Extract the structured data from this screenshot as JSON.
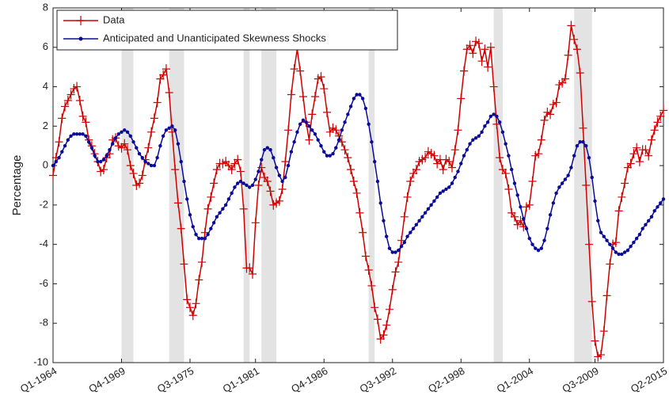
{
  "chart_data": {
    "type": "line",
    "ylabel": "Percentage",
    "ylim": [
      -10,
      8
    ],
    "yticks": [
      -10,
      -8,
      -6,
      -4,
      -2,
      0,
      2,
      4,
      6,
      8
    ],
    "grid": false,
    "legend": "upper-left",
    "shade_color": "#e3e3e3",
    "shaded_periods": [
      [
        23,
        27
      ],
      [
        39,
        44
      ],
      [
        64,
        66
      ],
      [
        70,
        75
      ],
      [
        106,
        108
      ],
      [
        148,
        151
      ],
      [
        175,
        181
      ]
    ],
    "categories": [
      "Q1-1964",
      null,
      null,
      null,
      null,
      null,
      null,
      null,
      null,
      null,
      null,
      null,
      null,
      null,
      null,
      null,
      null,
      null,
      null,
      null,
      null,
      null,
      null,
      "Q4-1969",
      null,
      null,
      null,
      null,
      null,
      null,
      null,
      null,
      null,
      null,
      null,
      null,
      null,
      null,
      null,
      null,
      null,
      null,
      null,
      null,
      null,
      null,
      "Q3-1975",
      null,
      null,
      null,
      null,
      null,
      null,
      null,
      null,
      null,
      null,
      null,
      null,
      null,
      null,
      null,
      null,
      null,
      null,
      null,
      null,
      null,
      "Q1-1981",
      null,
      null,
      null,
      null,
      null,
      null,
      null,
      null,
      null,
      null,
      null,
      null,
      null,
      null,
      null,
      null,
      null,
      null,
      null,
      null,
      null,
      null,
      "Q4-1986",
      null,
      null,
      null,
      null,
      null,
      null,
      null,
      null,
      null,
      null,
      null,
      null,
      null,
      null,
      null,
      null,
      null,
      null,
      null,
      null,
      null,
      null,
      "Q3-1992",
      null,
      null,
      null,
      null,
      null,
      null,
      null,
      null,
      null,
      null,
      null,
      null,
      null,
      null,
      null,
      null,
      null,
      null,
      null,
      null,
      null,
      null,
      "Q2-1998",
      null,
      null,
      null,
      null,
      null,
      null,
      null,
      null,
      null,
      null,
      null,
      null,
      null,
      null,
      null,
      null,
      null,
      null,
      null,
      null,
      null,
      null,
      "Q1-2004",
      null,
      null,
      null,
      null,
      null,
      null,
      null,
      null,
      null,
      null,
      null,
      null,
      null,
      null,
      null,
      null,
      null,
      null,
      null,
      null,
      null,
      "Q3-2009",
      null,
      null,
      null,
      null,
      null,
      null,
      null,
      null,
      null,
      null,
      null,
      null,
      null,
      null,
      null,
      null,
      null,
      null,
      null,
      null,
      null,
      null,
      "Q2-2015"
    ],
    "series": [
      {
        "name": "Data",
        "color": "#d00000",
        "marker": "plus",
        "values": [
          -0.5,
          0.4,
          1.2,
          2.4,
          3.0,
          3.3,
          3.6,
          3.9,
          4.0,
          3.3,
          2.5,
          2.2,
          1.3,
          1.0,
          0.6,
          0.2,
          -0.3,
          -0.2,
          0.4,
          0.6,
          1.3,
          1.4,
          1.0,
          0.9,
          1.1,
          0.8,
          0.0,
          -0.4,
          -1.0,
          -0.9,
          -0.5,
          0.3,
          0.9,
          1.7,
          2.4,
          3.2,
          4.4,
          4.6,
          4.9,
          3.7,
          1.7,
          -0.2,
          -1.9,
          -3.2,
          -5.0,
          -6.8,
          -7.2,
          -7.6,
          -7.0,
          -5.8,
          -4.9,
          -3.4,
          -2.2,
          -1.6,
          -0.9,
          -0.2,
          0.1,
          0.1,
          0.2,
          0.0,
          -0.2,
          0.1,
          0.3,
          -0.3,
          -2.2,
          -5.2,
          -5.2,
          -5.5,
          -2.9,
          -1.0,
          -0.1,
          -0.6,
          -0.8,
          -1.3,
          -2.0,
          -1.9,
          -1.8,
          -1.2,
          0.2,
          1.8,
          3.6,
          4.9,
          5.9,
          4.8,
          3.5,
          2.2,
          1.3,
          2.6,
          3.5,
          4.4,
          4.5,
          3.9,
          2.7,
          1.7,
          1.9,
          1.8,
          1.5,
          1.2,
          0.8,
          0.4,
          -0.2,
          -0.8,
          -1.4,
          -2.4,
          -3.4,
          -4.6,
          -5.3,
          -6.1,
          -7.2,
          -7.8,
          -8.8,
          -8.6,
          -8.1,
          -7.3,
          -6.3,
          -5.4,
          -4.9,
          -3.8,
          -2.6,
          -1.6,
          -0.8,
          -0.4,
          -0.2,
          0.2,
          0.3,
          0.4,
          0.7,
          0.6,
          0.5,
          0.1,
          0.3,
          -0.2,
          0.3,
          0.2,
          -0.1,
          0.8,
          1.8,
          3.4,
          4.8,
          5.9,
          6.1,
          5.7,
          6.3,
          6.2,
          5.3,
          5.9,
          5.0,
          6.0,
          4.0,
          2.1,
          0.4,
          -0.2,
          -0.4,
          -1.2,
          -2.4,
          -2.6,
          -3.0,
          -2.8,
          -3.1,
          -2.1,
          -2.0,
          -0.8,
          0.5,
          0.6,
          1.3,
          2.3,
          2.7,
          2.6,
          3.1,
          3.2,
          4.1,
          4.2,
          4.4,
          5.6,
          7.1,
          6.4,
          5.9,
          4.7,
          1.9,
          -1.0,
          -4.0,
          -6.9,
          -8.9,
          -9.7,
          -9.6,
          -8.4,
          -6.6,
          -5.0,
          -4.0,
          -3.9,
          -2.3,
          -1.6,
          -0.9,
          -0.1,
          0.1,
          0.6,
          0.9,
          0.2,
          0.8,
          0.8,
          0.5,
          1.3,
          1.8,
          2.2,
          2.5,
          2.8
        ]
      },
      {
        "name": "Anticipated and Unanticipated Skewness Shocks",
        "color": "#0a0a9a",
        "marker": "dot",
        "values": [
          0.0,
          0.2,
          0.4,
          0.7,
          1.0,
          1.3,
          1.5,
          1.6,
          1.6,
          1.6,
          1.6,
          1.5,
          1.2,
          0.9,
          0.5,
          0.2,
          0.2,
          0.3,
          0.5,
          0.8,
          1.1,
          1.4,
          1.6,
          1.7,
          1.8,
          1.7,
          1.5,
          1.2,
          0.9,
          0.6,
          0.4,
          0.2,
          0.1,
          0.0,
          0.0,
          0.4,
          1.0,
          1.5,
          1.8,
          1.9,
          2.0,
          1.8,
          1.1,
          0.2,
          -0.8,
          -1.7,
          -2.5,
          -3.1,
          -3.5,
          -3.7,
          -3.7,
          -3.7,
          -3.5,
          -3.2,
          -2.9,
          -2.6,
          -2.4,
          -2.2,
          -2.0,
          -1.7,
          -1.4,
          -1.1,
          -0.9,
          -0.8,
          -0.9,
          -1.0,
          -1.1,
          -1.0,
          -0.7,
          -0.3,
          0.3,
          0.8,
          0.9,
          0.8,
          0.4,
          -0.1,
          -0.5,
          -0.8,
          -0.6,
          0.0,
          0.7,
          1.2,
          1.7,
          2.1,
          2.3,
          2.2,
          2.0,
          1.8,
          1.6,
          1.3,
          1.0,
          0.7,
          0.5,
          0.5,
          0.6,
          0.9,
          1.3,
          1.8,
          2.2,
          2.6,
          3.0,
          3.4,
          3.6,
          3.6,
          3.4,
          2.9,
          2.1,
          1.2,
          0.2,
          -0.8,
          -1.9,
          -2.8,
          -3.6,
          -4.2,
          -4.4,
          -4.4,
          -4.3,
          -4.1,
          -3.9,
          -3.6,
          -3.4,
          -3.2,
          -3.0,
          -2.8,
          -2.6,
          -2.4,
          -2.2,
          -2.0,
          -1.8,
          -1.6,
          -1.4,
          -1.3,
          -1.2,
          -1.1,
          -0.9,
          -0.6,
          -0.3,
          0.1,
          0.5,
          0.8,
          1.1,
          1.3,
          1.4,
          1.5,
          1.7,
          2.0,
          2.2,
          2.5,
          2.6,
          2.5,
          2.2,
          1.7,
          1.1,
          0.5,
          -0.2,
          -0.9,
          -1.5,
          -2.1,
          -2.7,
          -3.2,
          -3.7,
          -4.0,
          -4.2,
          -4.3,
          -4.2,
          -3.8,
          -3.2,
          -2.5,
          -1.9,
          -1.4,
          -1.1,
          -0.9,
          -0.7,
          -0.5,
          -0.1,
          0.5,
          1.0,
          1.2,
          1.2,
          1.0,
          0.4,
          -0.6,
          -1.8,
          -2.8,
          -3.4,
          -3.6,
          -3.8,
          -4.0,
          -4.2,
          -4.4,
          -4.5,
          -4.5,
          -4.4,
          -4.3,
          -4.1,
          -3.9,
          -3.7,
          -3.5,
          -3.2,
          -3.0,
          -2.8,
          -2.6,
          -2.3,
          -2.1,
          -1.9,
          -1.7
        ]
      }
    ]
  }
}
